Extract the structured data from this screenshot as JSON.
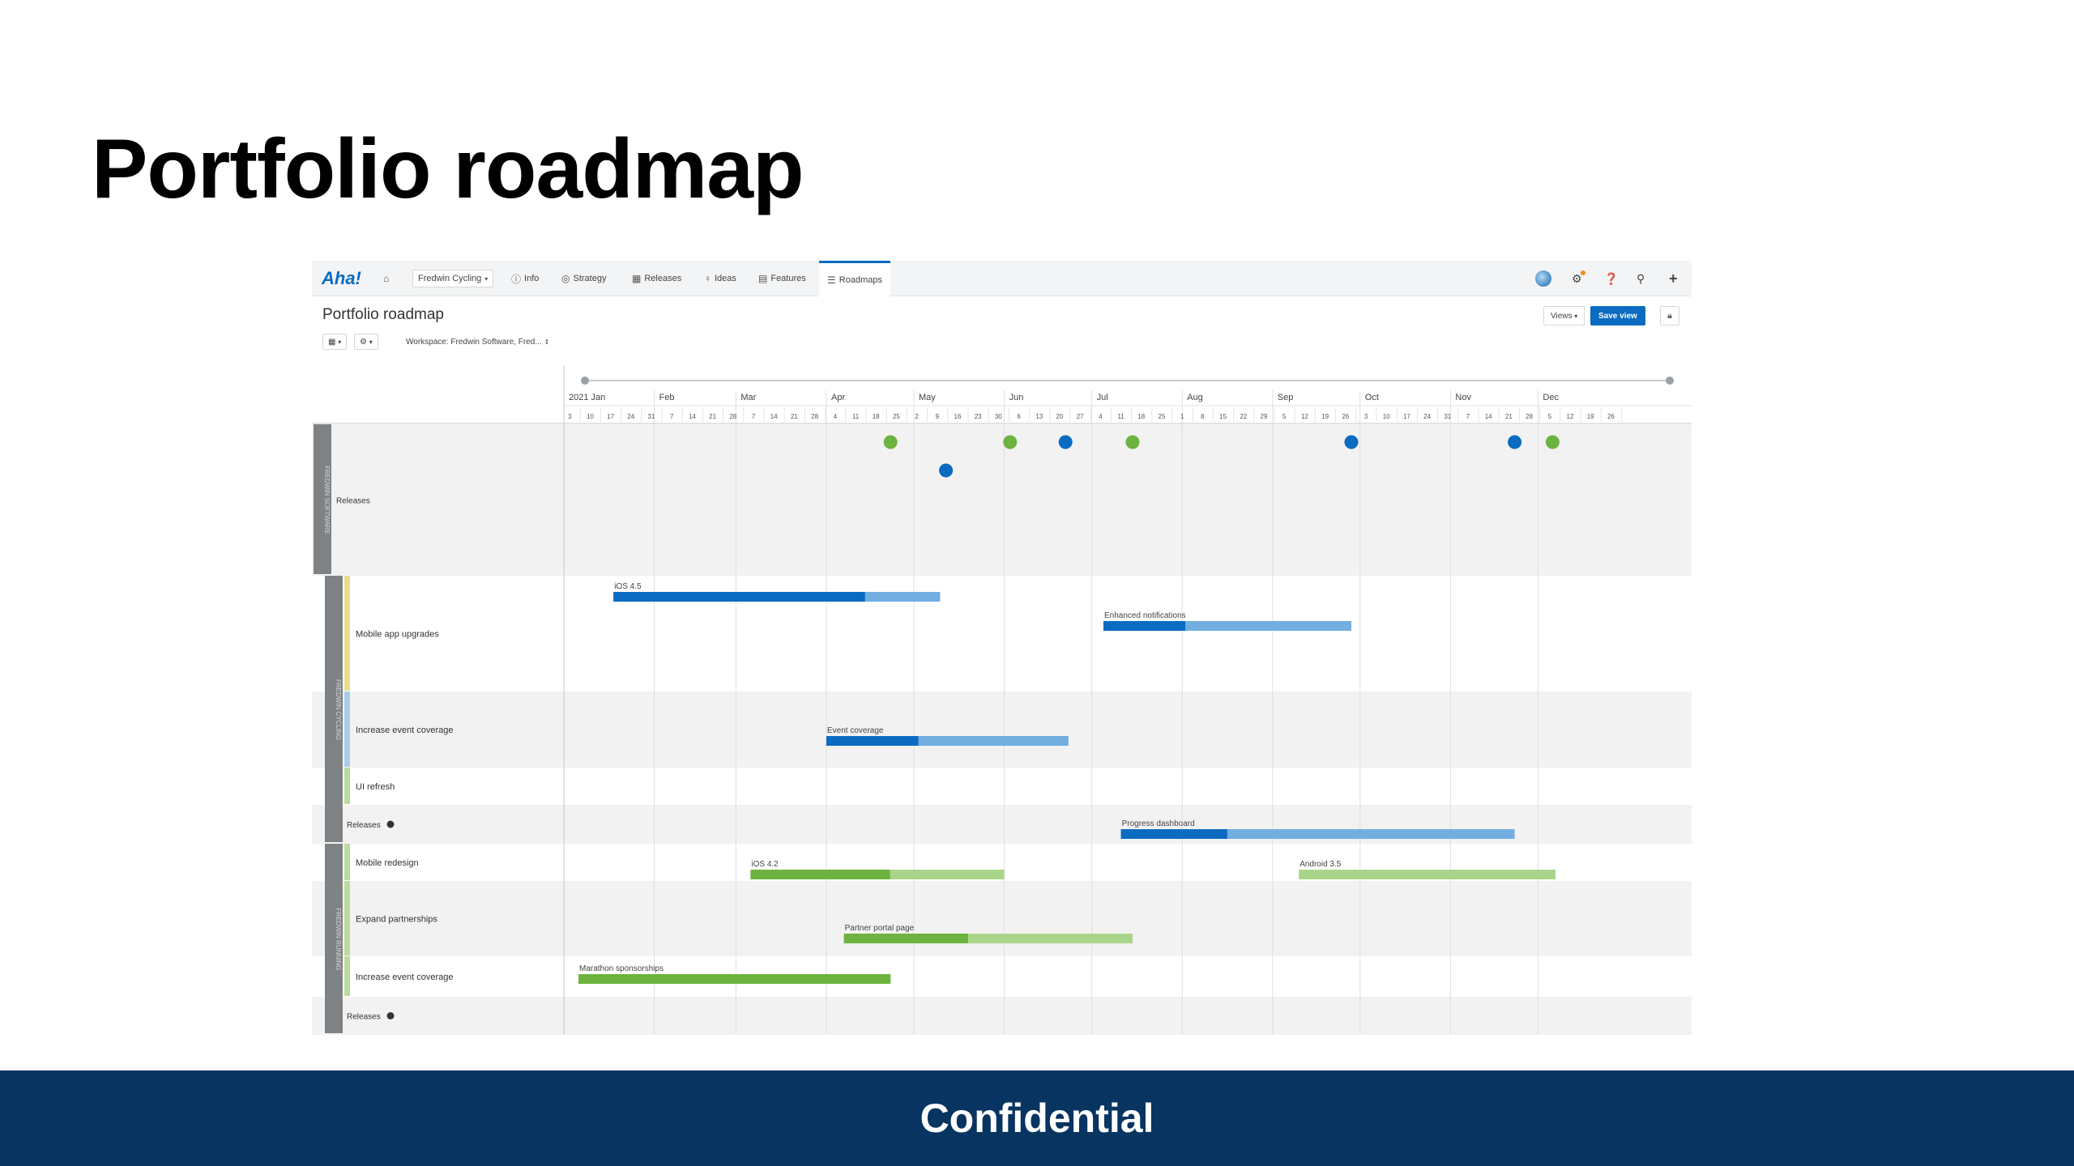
{
  "slide": {
    "title": "Portfolio roadmap",
    "footer": "Confidential"
  },
  "colors": {
    "footer_bg": "#083461",
    "accent_blue": "#0a6bc1",
    "light_blue": "#72aee0",
    "dark_green": "#6cb33f",
    "light_green": "#a9d58a"
  },
  "app": {
    "logo": "Aha!",
    "nav": {
      "workspace": "Fredwin Cycling",
      "items": [
        {
          "icon": "info-icon",
          "label": "Info"
        },
        {
          "icon": "strategy-icon",
          "label": "Strategy"
        },
        {
          "icon": "calendar-icon",
          "label": "Releases"
        },
        {
          "icon": "lightbulb-icon",
          "label": "Ideas"
        },
        {
          "icon": "grid-icon",
          "label": "Features"
        },
        {
          "icon": "roadmap-icon",
          "label": "Roadmaps"
        }
      ],
      "active": "Roadmaps"
    },
    "page_title": "Portfolio roadmap",
    "toolbar": {
      "workspace_filter": "Workspace: Fredwin Software, Fred..."
    },
    "views_label": "Views",
    "save_view_label": "Save view",
    "timeline": {
      "months": [
        "2021 Jan",
        "Feb",
        "Mar",
        "Apr",
        "May",
        "Jun",
        "Jul",
        "Aug",
        "Sep",
        "Oct",
        "Nov",
        "Dec"
      ],
      "weeks": [
        "3",
        "10",
        "17",
        "24",
        "31",
        "7",
        "14",
        "21",
        "28",
        "7",
        "14",
        "21",
        "28",
        "4",
        "11",
        "18",
        "25",
        "2",
        "9",
        "16",
        "23",
        "30",
        "6",
        "13",
        "20",
        "27",
        "4",
        "11",
        "18",
        "25",
        "1",
        "8",
        "15",
        "22",
        "29",
        "5",
        "12",
        "19",
        "26",
        "3",
        "10",
        "17",
        "24",
        "31",
        "7",
        "14",
        "21",
        "28",
        "5",
        "12",
        "19",
        "26"
      ]
    },
    "groups": [
      {
        "name": "FREDWIN SOFTWARE"
      },
      {
        "name": "FREDWIN CYCLING"
      },
      {
        "name": "FREDWIN RUNNING"
      }
    ],
    "rows": {
      "releases_top": "Releases",
      "mobile_app_upgrades": "Mobile app upgrades",
      "increase_event_coverage_1": "Increase event coverage",
      "ui_refresh": "UI refresh",
      "releases_cycling": "Releases",
      "mobile_redesign": "Mobile redesign",
      "expand_partnerships": "Expand partnerships",
      "increase_event_coverage_2": "Increase event coverage",
      "releases_running": "Releases"
    },
    "bars": [
      {
        "label": "iOS 4.5",
        "start": "2021-01-18",
        "end": "2021-05-10",
        "progress": 0.77,
        "color": "blue"
      },
      {
        "label": "Enhanced notifications",
        "start": "2021-07-05",
        "end": "2021-09-28",
        "progress": 0.33,
        "color": "blue"
      },
      {
        "label": "Event coverage",
        "start": "2021-04-01",
        "end": "2021-06-23",
        "progress": 0.38,
        "color": "blue"
      },
      {
        "label": "Progress dashboard",
        "start": "2021-07-11",
        "end": "2021-11-23",
        "progress": 0.27,
        "color": "blue"
      },
      {
        "label": "iOS 4.2",
        "start": "2021-03-06",
        "end": "2021-06-01",
        "progress": 0.55,
        "color": "green"
      },
      {
        "label": "Android 3.5",
        "start": "2021-09-10",
        "end": "2021-12-07",
        "progress": 0.0,
        "color": "green"
      },
      {
        "label": "Partner portal page",
        "start": "2021-04-07",
        "end": "2021-07-15",
        "progress": 0.43,
        "color": "green"
      },
      {
        "label": "Marathon sponsorships",
        "start": "2021-01-06",
        "end": "2021-04-23",
        "progress": 1.0,
        "color": "green"
      }
    ],
    "milestones": [
      {
        "date": "2021-04-23",
        "color": "green",
        "lane": 0
      },
      {
        "date": "2021-05-12",
        "color": "blue",
        "lane": 1
      },
      {
        "date": "2021-06-03",
        "color": "green",
        "lane": 0
      },
      {
        "date": "2021-06-22",
        "color": "blue",
        "lane": 0
      },
      {
        "date": "2021-07-15",
        "color": "green",
        "lane": 0
      },
      {
        "date": "2021-09-28",
        "color": "blue",
        "lane": 0
      },
      {
        "date": "2021-11-23",
        "color": "blue",
        "lane": 0
      },
      {
        "date": "2021-12-06",
        "color": "green",
        "lane": 0
      }
    ]
  }
}
